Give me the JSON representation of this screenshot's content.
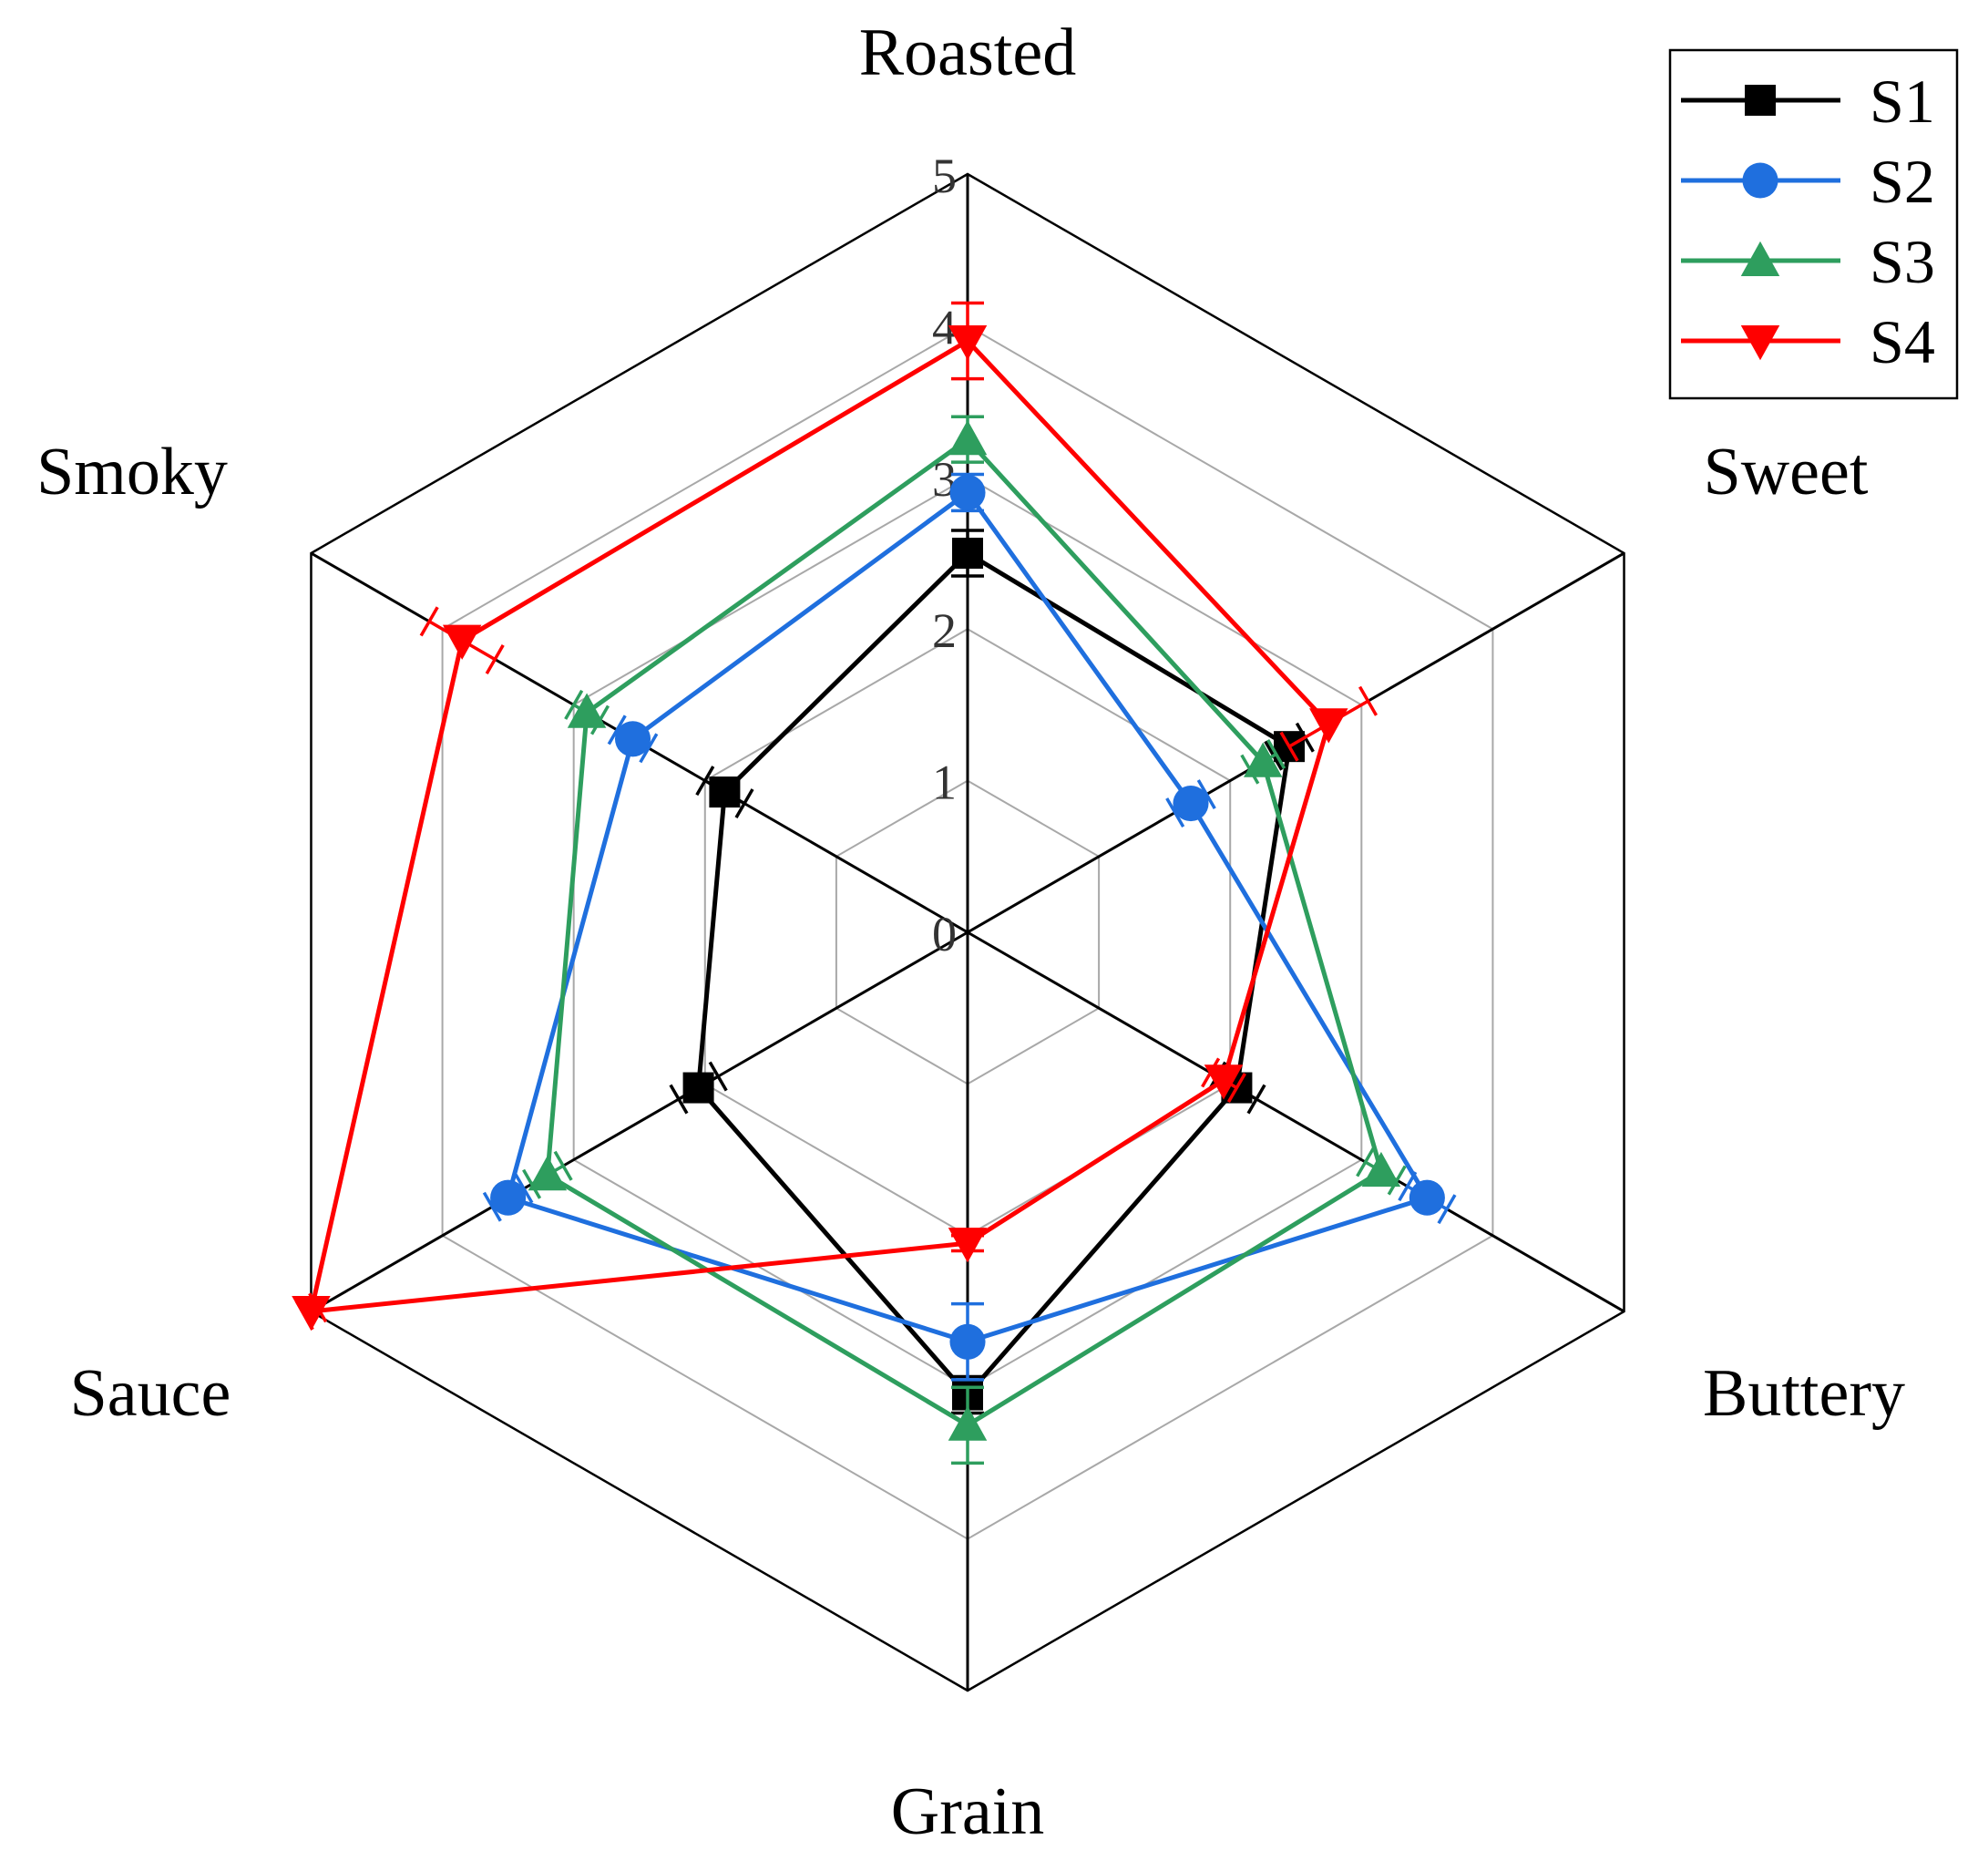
{
  "chart_data": {
    "type": "radar",
    "axes": [
      "Roasted",
      "Sweet",
      "Buttery",
      "Grain",
      "Sauce",
      "Smoky"
    ],
    "r_range": [
      0,
      5
    ],
    "r_ticks": [
      "0",
      "1",
      "2",
      "3",
      "4",
      "5"
    ],
    "grid": true,
    "legend_position": "top-right",
    "series": [
      {
        "name": "S1",
        "color": "#000000",
        "marker": "square",
        "values": [
          2.5,
          2.45,
          2.05,
          3.05,
          2.05,
          1.85
        ],
        "errors": [
          0.15,
          0.12,
          0.15,
          0.12,
          0.15,
          0.15
        ]
      },
      {
        "name": "S2",
        "color": "#1f6fde",
        "marker": "circle",
        "values": [
          2.9,
          1.7,
          3.5,
          2.7,
          3.5,
          2.55
        ],
        "errors": [
          0.12,
          0.12,
          0.15,
          0.25,
          0.12,
          0.12
        ]
      },
      {
        "name": "S3",
        "color": "#2e9e5e",
        "marker": "triangle-up",
        "values": [
          3.25,
          2.25,
          3.15,
          3.25,
          3.2,
          2.9
        ],
        "errors": [
          0.15,
          0.1,
          0.12,
          0.25,
          0.12,
          0.1
        ]
      },
      {
        "name": "S4",
        "color": "#ff0000",
        "marker": "triangle-down",
        "values": [
          3.9,
          2.75,
          1.95,
          2.05,
          5.0,
          3.85
        ],
        "errors": [
          0.25,
          0.3,
          0.1,
          0.05,
          0.05,
          0.25
        ]
      }
    ]
  }
}
